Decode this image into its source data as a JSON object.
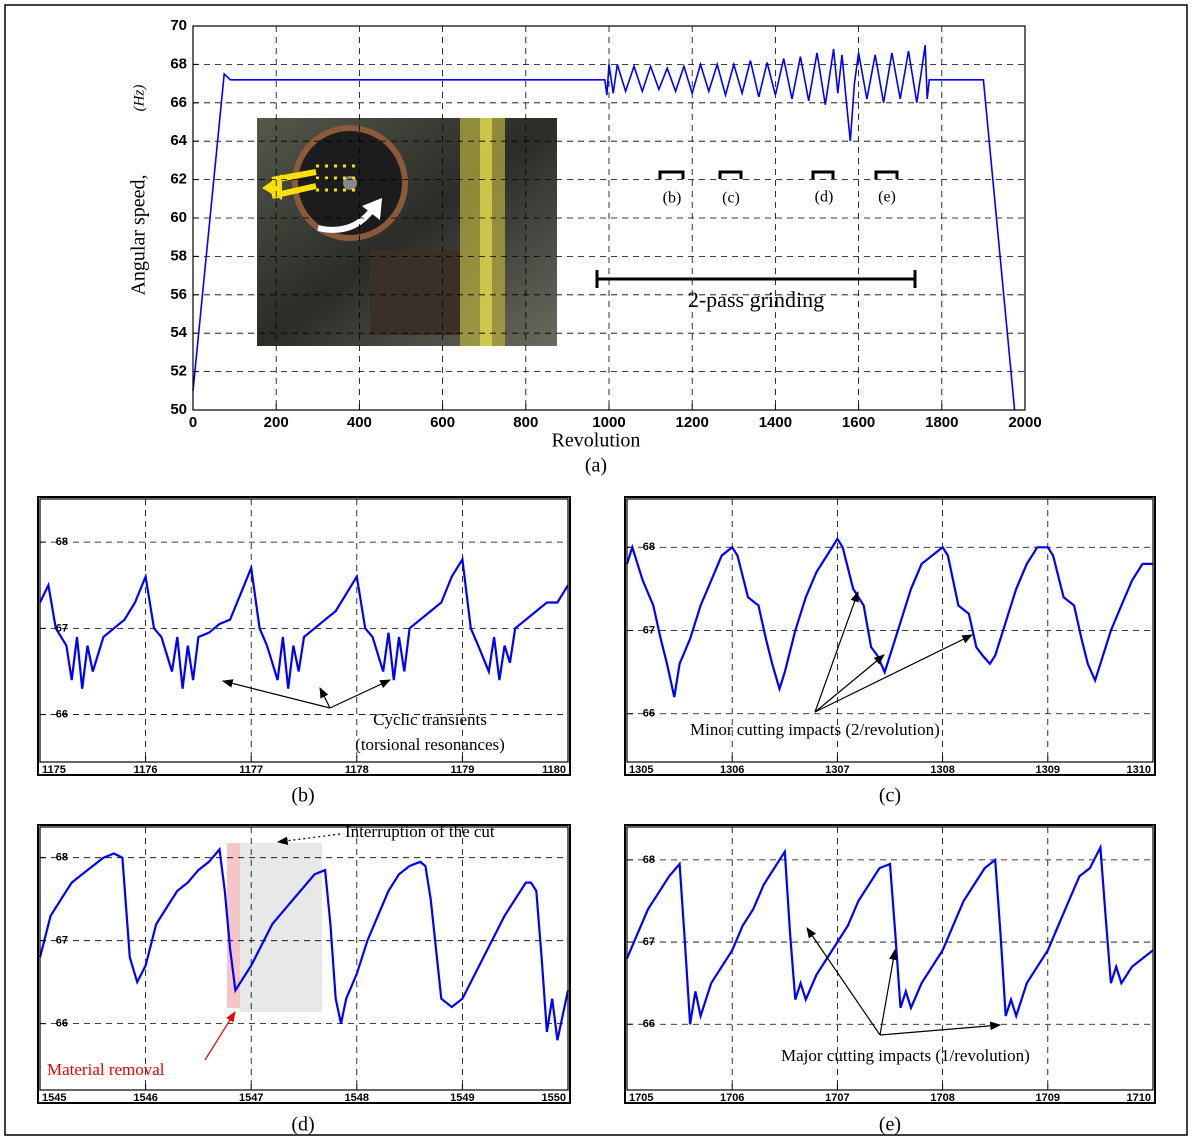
{
  "chart_data": [
    {
      "type": "line",
      "caption": "(a)",
      "xlabel": "Revolution",
      "ylabel": "Angular speed,",
      "ylabel_unit": "(Hz)",
      "annotations": [
        "2-pass grinding",
        "(b)",
        "(c)",
        "(d)",
        "(e)"
      ],
      "x": [
        0,
        75,
        90,
        990,
        995,
        1000,
        1010,
        1020,
        1040,
        1060,
        1080,
        1100,
        1120,
        1140,
        1160,
        1180,
        1200,
        1220,
        1240,
        1260,
        1280,
        1300,
        1320,
        1340,
        1360,
        1380,
        1400,
        1420,
        1440,
        1460,
        1480,
        1500,
        1520,
        1540,
        1550,
        1560,
        1570,
        1580,
        1590,
        1600,
        1620,
        1640,
        1660,
        1680,
        1700,
        1720,
        1740,
        1760,
        1765,
        1770,
        1900,
        1975
      ],
      "values": [
        51,
        67.5,
        67.2,
        67.2,
        66.4,
        68.0,
        66.5,
        68.0,
        66.6,
        67.9,
        66.6,
        67.9,
        66.7,
        67.8,
        66.6,
        67.9,
        66.5,
        68.0,
        66.6,
        68.0,
        66.4,
        68.0,
        66.5,
        68.2,
        66.3,
        68.1,
        66.4,
        68.3,
        66.2,
        68.4,
        66.1,
        68.6,
        65.9,
        68.8,
        66.5,
        68.5,
        66.2,
        64.0,
        67.0,
        68.6,
        66.2,
        68.5,
        66.0,
        68.6,
        66.2,
        68.7,
        66.0,
        69.0,
        66.2,
        67.2,
        67.2,
        50
      ],
      "color": "#0000ff",
      "xlim": [
        0,
        2000
      ],
      "ylim": [
        50,
        70
      ],
      "xticks": [
        0,
        200,
        400,
        600,
        800,
        1000,
        1200,
        1400,
        1600,
        1800,
        2000
      ],
      "yticks": [
        50,
        52,
        54,
        56,
        58,
        60,
        62,
        64,
        66,
        68,
        70
      ],
      "grid": true
    },
    {
      "type": "line",
      "caption": "(b)",
      "annotations": [
        "Cyclic transients",
        "(torsional resonances)"
      ],
      "x": [
        1175,
        1175.08,
        1175.15,
        1175.25,
        1175.3,
        1175.35,
        1175.4,
        1175.45,
        1175.5,
        1175.6,
        1175.7,
        1175.8,
        1175.9,
        1176,
        1176.08,
        1176.15,
        1176.25,
        1176.3,
        1176.35,
        1176.4,
        1176.45,
        1176.5,
        1176.6,
        1176.7,
        1176.8,
        1176.9,
        1177,
        1177.08,
        1177.15,
        1177.25,
        1177.3,
        1177.35,
        1177.4,
        1177.45,
        1177.5,
        1177.6,
        1177.7,
        1177.8,
        1177.9,
        1178,
        1178.08,
        1178.15,
        1178.25,
        1178.3,
        1178.35,
        1178.4,
        1178.45,
        1178.5,
        1178.6,
        1178.7,
        1178.8,
        1178.9,
        1179,
        1179.08,
        1179.15,
        1179.25,
        1179.3,
        1179.35,
        1179.4,
        1179.45,
        1179.5,
        1179.6,
        1179.7,
        1179.8,
        1179.9,
        1180
      ],
      "values": [
        67.3,
        67.5,
        67.0,
        66.8,
        66.4,
        66.9,
        66.3,
        66.8,
        66.5,
        66.9,
        67.0,
        67.1,
        67.3,
        67.6,
        67.0,
        66.9,
        66.5,
        66.9,
        66.3,
        66.8,
        66.4,
        66.9,
        66.95,
        67.05,
        67.1,
        67.4,
        67.7,
        67.0,
        66.8,
        66.4,
        66.9,
        66.3,
        66.8,
        66.5,
        66.9,
        67.0,
        67.1,
        67.2,
        67.4,
        67.6,
        67.0,
        66.9,
        66.5,
        66.95,
        66.4,
        66.9,
        66.5,
        67.0,
        67.1,
        67.2,
        67.3,
        67.6,
        67.8,
        67.0,
        66.8,
        66.5,
        66.9,
        66.4,
        66.8,
        66.6,
        67.0,
        67.1,
        67.2,
        67.3,
        67.3,
        67.5
      ],
      "color": "#0000ff",
      "xlim": [
        1175,
        1180
      ],
      "ylim": [
        65.45,
        68.5
      ],
      "xticks": [
        1175,
        1176,
        1177,
        1178,
        1179,
        1180
      ],
      "yticks": [
        66,
        67,
        68
      ],
      "grid": true
    },
    {
      "type": "line",
      "caption": "(c)",
      "annotations": [
        "Minor cutting impacts (2/revolution)"
      ],
      "x": [
        1305,
        1305.05,
        1305.15,
        1305.25,
        1305.32,
        1305.38,
        1305.45,
        1305.5,
        1305.6,
        1305.7,
        1305.8,
        1305.9,
        1306,
        1306.05,
        1306.15,
        1306.25,
        1306.32,
        1306.38,
        1306.45,
        1306.5,
        1306.6,
        1306.7,
        1306.8,
        1306.9,
        1307,
        1307.05,
        1307.15,
        1307.25,
        1307.32,
        1307.38,
        1307.45,
        1307.5,
        1307.6,
        1307.7,
        1307.8,
        1307.9,
        1308,
        1308.05,
        1308.15,
        1308.25,
        1308.32,
        1308.38,
        1308.45,
        1308.5,
        1308.6,
        1308.7,
        1308.8,
        1308.9,
        1309,
        1309.05,
        1309.15,
        1309.25,
        1309.32,
        1309.38,
        1309.45,
        1309.5,
        1309.6,
        1309.7,
        1309.8,
        1309.9,
        1310
      ],
      "values": [
        67.8,
        68.0,
        67.6,
        67.3,
        66.9,
        66.6,
        66.2,
        66.6,
        66.9,
        67.3,
        67.6,
        67.9,
        68.0,
        67.9,
        67.4,
        67.3,
        66.9,
        66.6,
        66.3,
        66.5,
        67.0,
        67.4,
        67.7,
        67.9,
        68.1,
        68.0,
        67.5,
        67.3,
        66.8,
        66.7,
        66.5,
        66.7,
        67.1,
        67.5,
        67.8,
        67.9,
        68.0,
        67.9,
        67.3,
        67.2,
        66.8,
        66.7,
        66.6,
        66.7,
        67.1,
        67.5,
        67.8,
        68.0,
        68.0,
        67.9,
        67.4,
        67.3,
        66.9,
        66.6,
        66.4,
        66.6,
        67.0,
        67.3,
        67.6,
        67.8,
        67.8
      ],
      "color": "#0000ff",
      "xlim": [
        1305,
        1310
      ],
      "ylim": [
        65.42,
        68.58
      ],
      "xticks": [
        1305,
        1306,
        1307,
        1308,
        1309,
        1310
      ],
      "yticks": [
        66,
        67,
        68
      ],
      "grid": true
    },
    {
      "type": "line",
      "caption": "(d)",
      "annotations": [
        "Interruption of the cut",
        "Material removal"
      ],
      "x": [
        1545,
        1545.1,
        1545.2,
        1545.3,
        1545.4,
        1545.5,
        1545.6,
        1545.7,
        1545.78,
        1545.85,
        1545.92,
        1546.0,
        1546.1,
        1546.2,
        1546.3,
        1546.4,
        1546.5,
        1546.6,
        1546.7,
        1546.75,
        1546.8,
        1546.85,
        1547.0,
        1547.2,
        1547.4,
        1547.6,
        1547.7,
        1547.75,
        1547.8,
        1547.85,
        1547.9,
        1548.0,
        1548.1,
        1548.2,
        1548.3,
        1548.4,
        1548.5,
        1548.6,
        1548.65,
        1548.7,
        1548.8,
        1548.9,
        1549.0,
        1549.2,
        1549.4,
        1549.5,
        1549.6,
        1549.65,
        1549.7,
        1549.75,
        1549.8,
        1549.85,
        1549.9,
        1550.0
      ],
      "values": [
        66.8,
        67.3,
        67.5,
        67.7,
        67.8,
        67.9,
        68.0,
        68.05,
        68.0,
        66.8,
        66.5,
        66.7,
        67.2,
        67.4,
        67.6,
        67.7,
        67.85,
        67.95,
        68.1,
        67.6,
        66.9,
        66.4,
        66.7,
        67.2,
        67.5,
        67.8,
        67.85,
        67.2,
        66.3,
        66.0,
        66.3,
        66.6,
        67.0,
        67.3,
        67.6,
        67.8,
        67.9,
        67.95,
        67.9,
        67.5,
        66.3,
        66.2,
        66.3,
        66.8,
        67.3,
        67.5,
        67.7,
        67.7,
        67.6,
        66.8,
        65.9,
        66.3,
        65.8,
        66.4
      ],
      "color": "#0000ff",
      "xlim": [
        1545,
        1550
      ],
      "ylim": [
        65.2,
        68.37
      ],
      "xticks": [
        1545,
        1546,
        1547,
        1548,
        1549,
        1550
      ],
      "yticks": [
        66,
        67,
        68
      ],
      "grid": true
    },
    {
      "type": "line",
      "caption": "(e)",
      "annotations": [
        "Major cutting impacts (1/revolution)"
      ],
      "x": [
        1705,
        1705.1,
        1705.2,
        1705.3,
        1705.4,
        1705.5,
        1705.55,
        1705.6,
        1705.65,
        1705.7,
        1705.8,
        1705.9,
        1706,
        1706.1,
        1706.2,
        1706.3,
        1706.4,
        1706.5,
        1706.55,
        1706.6,
        1706.65,
        1706.7,
        1706.8,
        1706.9,
        1707,
        1707.1,
        1707.2,
        1707.3,
        1707.4,
        1707.5,
        1707.55,
        1707.6,
        1707.65,
        1707.7,
        1707.8,
        1707.9,
        1708,
        1708.1,
        1708.2,
        1708.3,
        1708.4,
        1708.5,
        1708.55,
        1708.6,
        1708.65,
        1708.7,
        1708.8,
        1708.9,
        1709,
        1709.1,
        1709.2,
        1709.3,
        1709.4,
        1709.5,
        1709.55,
        1709.6,
        1709.65,
        1709.7,
        1709.8,
        1709.9,
        1710
      ],
      "values": [
        66.8,
        67.1,
        67.4,
        67.6,
        67.8,
        67.95,
        67.0,
        66.0,
        66.4,
        66.1,
        66.5,
        66.7,
        66.9,
        67.2,
        67.4,
        67.7,
        67.9,
        68.1,
        67.1,
        66.3,
        66.5,
        66.3,
        66.6,
        66.8,
        67.0,
        67.2,
        67.5,
        67.7,
        67.9,
        67.95,
        67.1,
        66.2,
        66.4,
        66.2,
        66.5,
        66.7,
        66.9,
        67.2,
        67.5,
        67.7,
        67.9,
        68.0,
        67.1,
        66.1,
        66.3,
        66.1,
        66.5,
        66.7,
        66.9,
        67.2,
        67.5,
        67.8,
        67.9,
        68.15,
        67.3,
        66.5,
        66.7,
        66.5,
        66.7,
        66.8,
        66.9
      ],
      "color": "#0000ff",
      "xlim": [
        1705,
        1710
      ],
      "ylim": [
        65.2,
        68.4
      ],
      "xticks": [
        1705,
        1706,
        1707,
        1708,
        1709,
        1710
      ],
      "yticks": [
        66,
        67,
        68
      ],
      "grid": true
    }
  ]
}
